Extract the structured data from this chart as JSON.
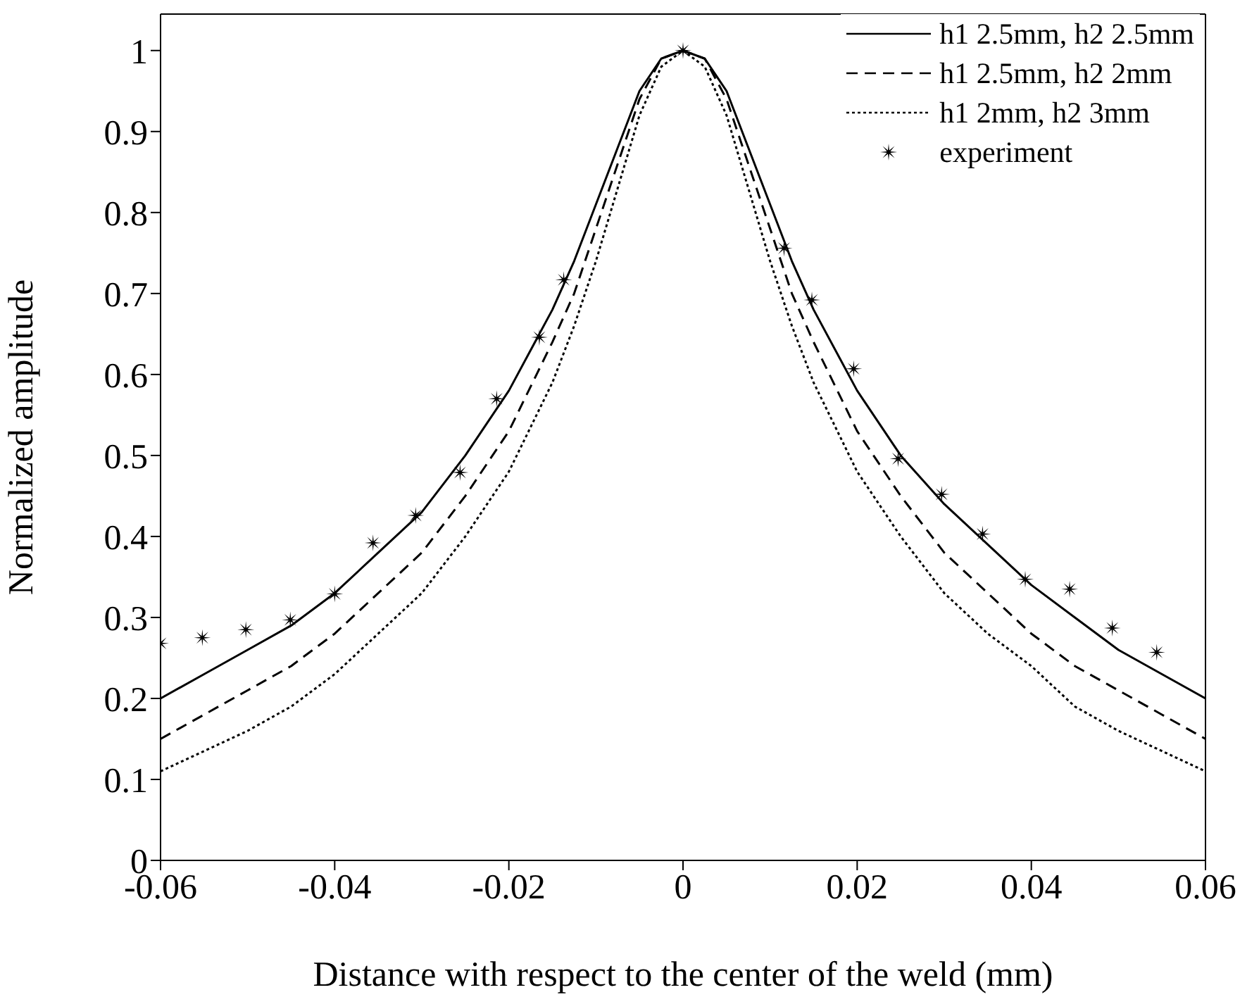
{
  "chart_data": {
    "type": "line",
    "xlabel": "Distance with respect to the center of the weld (mm)",
    "ylabel": "Normalized amplitude",
    "xlim": [
      -0.06,
      0.06
    ],
    "xticks": [
      -0.06,
      -0.04,
      -0.02,
      0,
      0.02,
      0.04,
      0.06
    ],
    "ylim": [
      0,
      1.045
    ],
    "yticks": [
      0,
      0.1,
      0.2,
      0.3,
      0.4,
      0.5,
      0.6,
      0.7,
      0.8,
      0.9,
      1
    ],
    "legend": "top right",
    "marker": "none",
    "series": [
      {
        "name": "h1 2.5mm, h2 2.5mm",
        "color": "#000000",
        "line_style": "solid",
        "x": [
          -0.06,
          -0.055,
          -0.05,
          -0.045,
          -0.04,
          -0.035,
          -0.03,
          -0.025,
          -0.02,
          -0.015,
          -0.0125,
          -0.01,
          -0.0075,
          -0.005,
          -0.0025,
          0,
          0.0025,
          0.005,
          0.0075,
          0.01,
          0.0125,
          0.015,
          0.02,
          0.025,
          0.03,
          0.035,
          0.04,
          0.045,
          0.05,
          0.055,
          0.06
        ],
        "values": [
          0.2,
          0.23,
          0.26,
          0.29,
          0.33,
          0.38,
          0.43,
          0.5,
          0.58,
          0.68,
          0.74,
          0.81,
          0.88,
          0.95,
          0.99,
          1,
          0.99,
          0.95,
          0.88,
          0.81,
          0.74,
          0.68,
          0.58,
          0.5,
          0.44,
          0.39,
          0.34,
          0.3,
          0.26,
          0.23,
          0.2
        ]
      },
      {
        "name": "h1 2.5mm, h2 2mm",
        "color": "#000000",
        "line_style": "dashed",
        "x": [
          -0.06,
          -0.055,
          -0.05,
          -0.045,
          -0.04,
          -0.035,
          -0.03,
          -0.025,
          -0.02,
          -0.015,
          -0.0125,
          -0.01,
          -0.0075,
          -0.005,
          -0.0025,
          0,
          0.0025,
          0.005,
          0.0075,
          0.01,
          0.0125,
          0.015,
          0.02,
          0.025,
          0.03,
          0.035,
          0.04,
          0.045,
          0.05,
          0.055,
          0.06
        ],
        "values": [
          0.15,
          0.18,
          0.21,
          0.24,
          0.28,
          0.33,
          0.38,
          0.45,
          0.53,
          0.64,
          0.7,
          0.78,
          0.86,
          0.94,
          0.99,
          1,
          0.99,
          0.94,
          0.86,
          0.78,
          0.7,
          0.64,
          0.53,
          0.45,
          0.38,
          0.33,
          0.28,
          0.24,
          0.21,
          0.18,
          0.15
        ]
      },
      {
        "name": "h1 2mm, h2 3mm",
        "color": "#000000",
        "line_style": "dotted",
        "x": [
          -0.06,
          -0.055,
          -0.05,
          -0.045,
          -0.04,
          -0.035,
          -0.03,
          -0.025,
          -0.02,
          -0.015,
          -0.0125,
          -0.01,
          -0.0075,
          -0.005,
          -0.0025,
          0,
          0.0025,
          0.005,
          0.0075,
          0.01,
          0.0125,
          0.015,
          0.02,
          0.025,
          0.03,
          0.035,
          0.04,
          0.045,
          0.05,
          0.055,
          0.06
        ],
        "values": [
          0.11,
          0.135,
          0.16,
          0.19,
          0.23,
          0.28,
          0.33,
          0.4,
          0.48,
          0.59,
          0.66,
          0.74,
          0.83,
          0.92,
          0.98,
          1,
          0.98,
          0.92,
          0.83,
          0.74,
          0.66,
          0.59,
          0.48,
          0.4,
          0.33,
          0.28,
          0.24,
          0.19,
          0.16,
          0.135,
          0.11
        ]
      },
      {
        "name": "experiment",
        "color": "#000000",
        "type": "scatter",
        "marker": "star",
        "x": [
          -0.06,
          -0.0552,
          -0.0502,
          -0.0451,
          -0.04,
          -0.0356,
          -0.0307,
          -0.0256,
          -0.0214,
          -0.0165,
          -0.0137,
          0,
          0.0116,
          0.0148,
          0.0196,
          0.0247,
          0.0297,
          0.0344,
          0.0393,
          0.0444,
          0.0493,
          0.0544
        ],
        "values": [
          0.268,
          0.275,
          0.285,
          0.297,
          0.329,
          0.392,
          0.426,
          0.479,
          0.57,
          0.646,
          0.717,
          1,
          0.756,
          0.692,
          0.607,
          0.496,
          0.452,
          0.403,
          0.347,
          0.335,
          0.287,
          0.257
        ]
      }
    ]
  }
}
